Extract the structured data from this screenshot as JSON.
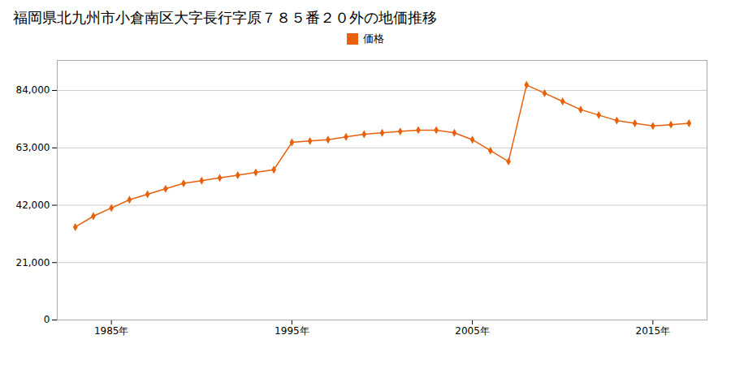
{
  "chart_data": {
    "type": "line",
    "title": "福岡県北九州市小倉南区大字長行字原７８５番２０外の地価推移",
    "x": [
      1983,
      1984,
      1985,
      1986,
      1987,
      1988,
      1989,
      1990,
      1991,
      1992,
      1993,
      1994,
      1995,
      1996,
      1997,
      1998,
      1999,
      2000,
      2001,
      2002,
      2003,
      2004,
      2005,
      2006,
      2007,
      2008,
      2009,
      2010,
      2011,
      2012,
      2013,
      2014,
      2015,
      2016,
      2017
    ],
    "series": [
      {
        "name": "価格",
        "color": "#e8600a",
        "marker": "diamond",
        "values": [
          34000,
          38000,
          41000,
          44000,
          46000,
          48000,
          50000,
          51000,
          52000,
          53000,
          54000,
          55000,
          65000,
          65500,
          66000,
          67000,
          68000,
          68500,
          69000,
          69500,
          69500,
          68500,
          66000,
          62000,
          58000,
          86000,
          83000,
          80000,
          77000,
          75000,
          73000,
          72000,
          71000,
          71500,
          72000
        ]
      }
    ],
    "xlim": [
      1982,
      2018
    ],
    "xticks": [
      {
        "value": 1985,
        "label": "1985年"
      },
      {
        "value": 1995,
        "label": "1995年"
      },
      {
        "value": 2005,
        "label": "2005年"
      },
      {
        "value": 2015,
        "label": "2015年"
      }
    ],
    "ylim": [
      0,
      95000
    ],
    "yticks": [
      0,
      {
        "value": 21000,
        "label": "21,000"
      },
      {
        "value": 42000,
        "label": "42,000"
      },
      {
        "value": 63000,
        "label": "63,000"
      },
      {
        "value": 84000,
        "label": "84,000"
      }
    ],
    "grid": "y",
    "legend": "top"
  }
}
